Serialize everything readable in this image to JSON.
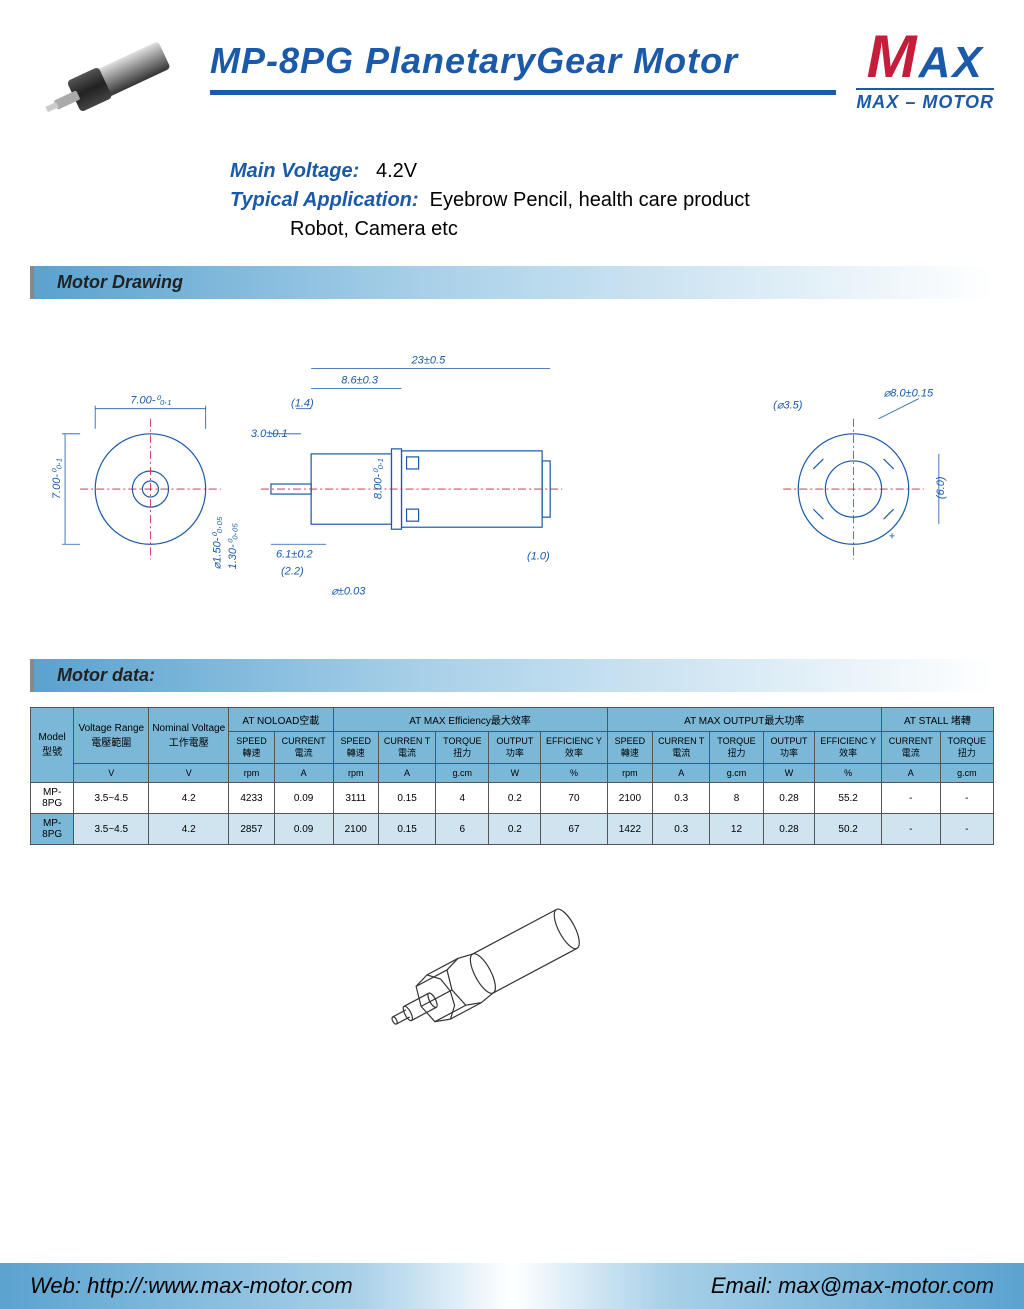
{
  "header": {
    "title": "MP-8PG PlanetaryGear Motor",
    "logo_main": "AX",
    "logo_M": "M",
    "logo_sub": "MAX – MOTOR"
  },
  "specs": {
    "voltage_label": "Main Voltage:",
    "voltage_value": "4.2V",
    "app_label": "Typical Application:",
    "app_value": "Eyebrow Pencil, health care product",
    "app_cont": "Robot, Camera etc"
  },
  "sections": {
    "drawing": "Motor Drawing",
    "data": "Motor data:"
  },
  "drawing_dims": {
    "d1": "7.00-⁰₀.₁",
    "d2": "7.00-⁰₀.₁",
    "d3": "⌀1.50-⁰₀.₀₅",
    "d4": "1.30-⁰₀.₀₅",
    "d5": "(1.4)",
    "d6": "3.0±0.1",
    "d7": "6.1±0.2",
    "d8": "(2.2)",
    "d9": "8.6±0.3",
    "d10": "23±0.5",
    "d11": "8.00-⁰₀.₁",
    "d12": "⌀±0.03",
    "d13": "(⌀3.5)",
    "d14": "⌀8.0±0.15",
    "d15": "(6.0)",
    "d16": "(1.0)"
  },
  "table": {
    "headers": {
      "model": "Model\n型號",
      "vrange": "Voltage Range\n電壓範圍",
      "nvolt": "Nominal Voltage\n工作電壓",
      "noload": "AT NOLOAD空載",
      "maxeff": "AT MAX Efficiency最大效率",
      "maxout": "AT MAX OUTPUT最大功率",
      "stall": "AT STALL 堵轉",
      "speed": "SPEED\n轉速",
      "current": "CURRENT\n電流",
      "current2": "CURREN\nT\n電流",
      "torque": "TORQUE\n扭力",
      "output": "OUTPUT\n功率",
      "eff": "EFFICIENC\nY\n效率",
      "unit_v": "V",
      "unit_rpm": "rpm",
      "unit_a": "A",
      "unit_gcm": "g.cm",
      "unit_w": "W",
      "unit_pct": "%"
    },
    "rows": [
      {
        "model": "MP-8PG",
        "vrange": "3.5~4.5",
        "nvolt": "4.2",
        "nl_speed": "4233",
        "nl_curr": "0.09",
        "me_speed": "3111",
        "me_curr": "0.15",
        "me_torque": "4",
        "me_out": "0.2",
        "me_eff": "70",
        "mo_speed": "2100",
        "mo_curr": "0.3",
        "mo_torque": "8",
        "mo_out": "0.28",
        "mo_eff": "55.2",
        "st_curr": "-",
        "st_torque": "-"
      },
      {
        "model": "MP-8PG",
        "vrange": "3.5~4.5",
        "nvolt": "4.2",
        "nl_speed": "2857",
        "nl_curr": "0.09",
        "me_speed": "2100",
        "me_curr": "0.15",
        "me_torque": "6",
        "me_out": "0.2",
        "me_eff": "67",
        "mo_speed": "1422",
        "mo_curr": "0.3",
        "mo_torque": "12",
        "mo_out": "0.28",
        "mo_eff": "50.2",
        "st_curr": "-",
        "st_torque": "-"
      }
    ]
  },
  "footer": {
    "web_label": "Web: ",
    "web": "http://:www.max-motor.com",
    "email_label": "Email: ",
    "email": "max@max-motor.com"
  },
  "colors": {
    "brand_blue": "#1a5aa8",
    "brand_red": "#c41e3a",
    "section_blue": "#5ba3d0",
    "table_header": "#7bb8d8",
    "table_alt": "#d0e4f0"
  }
}
